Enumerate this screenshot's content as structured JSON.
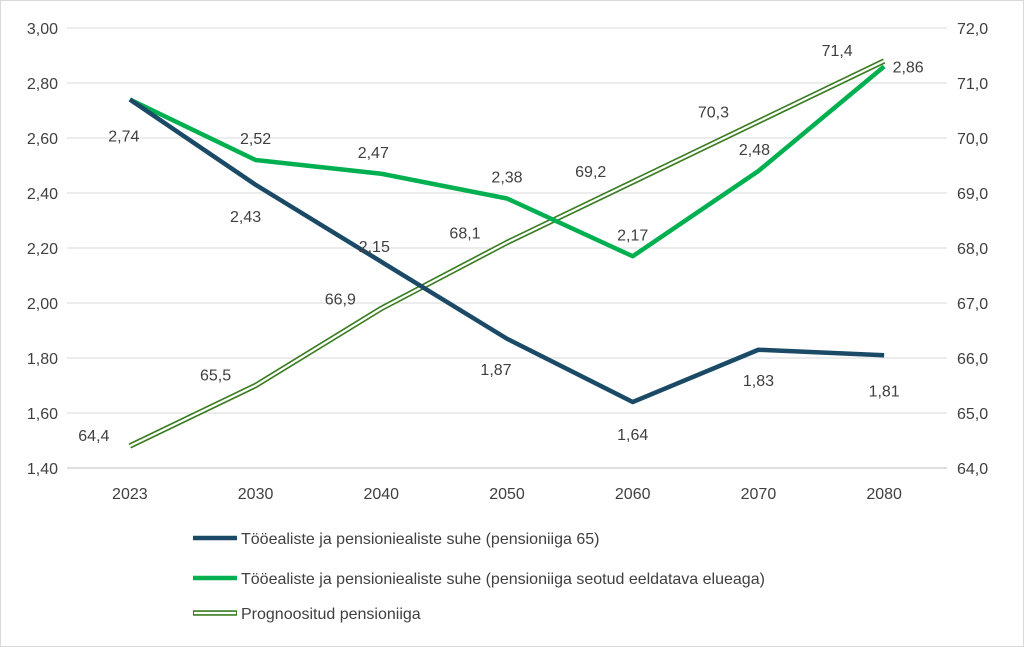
{
  "chart_data": {
    "type": "line",
    "categories": [
      "2023",
      "2030",
      "2040",
      "2050",
      "2060",
      "2070",
      "2080"
    ],
    "y_left": {
      "range": [
        1.4,
        3.0
      ],
      "ticks": [
        "1,40",
        "1,60",
        "1,80",
        "2,00",
        "2,20",
        "2,40",
        "2,60",
        "2,80",
        "3,00"
      ]
    },
    "y_right": {
      "range": [
        64.0,
        72.0
      ],
      "ticks": [
        "64,0",
        "65,0",
        "66,0",
        "67,0",
        "68,0",
        "69,0",
        "70,0",
        "71,0",
        "72,0"
      ]
    },
    "grid": true,
    "legend_position": "bottom",
    "series": [
      {
        "name": "Tööealiste ja pensioniealiste suhe (pensioniiga 65)",
        "axis": "left",
        "color": "#1b4a66",
        "style": "solid",
        "values": [
          2.74,
          2.43,
          2.15,
          1.87,
          1.64,
          1.83,
          1.81
        ],
        "labels": [
          "2,74",
          "2,43",
          "2,15",
          "1,87",
          "1,64",
          "1,83",
          "1,81"
        ]
      },
      {
        "name": "Tööealiste ja pensioniealiste suhe (pensioniiga seotud eeldatava elueaga)",
        "axis": "left",
        "color": "#00b050",
        "style": "solid",
        "values": [
          2.74,
          2.52,
          2.47,
          2.38,
          2.17,
          2.48,
          2.86
        ],
        "labels": [
          "",
          "2,52",
          "2,47",
          "2,38",
          "2,17",
          "2,48",
          "2,86"
        ]
      },
      {
        "name": "Prognoositud pensioniiga",
        "axis": "right",
        "color": "#3a7d22",
        "style": "double",
        "values": [
          64.4,
          65.5,
          66.9,
          68.1,
          69.2,
          70.3,
          71.4
        ],
        "labels": [
          "64,4",
          "65,5",
          "66,9",
          "68,1",
          "69,2",
          "70,3",
          "71,4"
        ]
      }
    ]
  }
}
